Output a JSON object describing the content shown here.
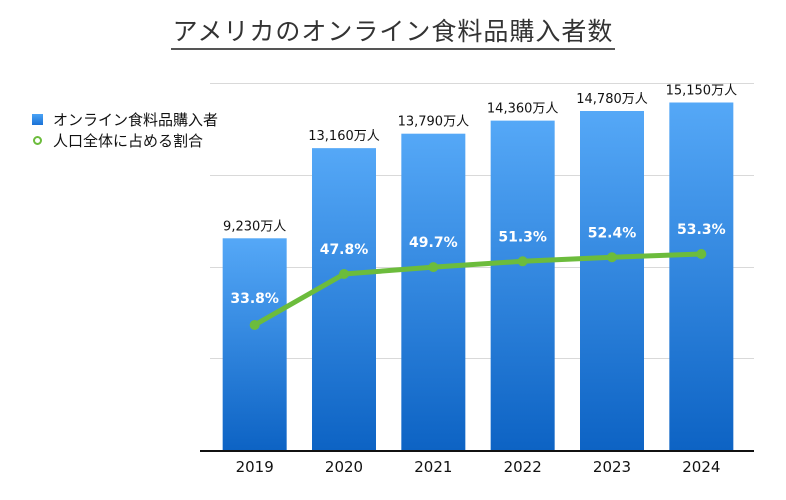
{
  "chart_data": {
    "type": "bar",
    "title": "アメリカのオンライン食料品購入者数",
    "xlabel": "",
    "ylabel": "",
    "categories": [
      "2019",
      "2020",
      "2021",
      "2022",
      "2023",
      "2024"
    ],
    "ylim": [
      0,
      16000
    ],
    "grid": true,
    "legend_position": "top-left",
    "series": [
      {
        "name": "オンライン食料品購入者",
        "type": "bar",
        "unit": "万人",
        "values": [
          9230,
          13160,
          13790,
          14360,
          14780,
          15150
        ],
        "labels": [
          "9,230万人",
          "13,160万人",
          "13,790万人",
          "14,360万人",
          "14,780万人",
          "15,150万人"
        ],
        "color": "#2e86e3"
      },
      {
        "name": "人口全体に占める割合",
        "type": "line",
        "unit": "%",
        "values": [
          33.8,
          47.8,
          49.7,
          51.3,
          52.4,
          53.3
        ],
        "labels": [
          "33.8%",
          "47.8%",
          "49.7%",
          "51.3%",
          "52.4%",
          "53.3%"
        ],
        "color": "#6cbc3c"
      }
    ]
  },
  "colors": {
    "bar_top": "#55a8f7",
    "bar_bottom": "#0d63c4",
    "line": "#6cbc3c",
    "grid": "#d9d9d9",
    "axis": "#111111"
  }
}
